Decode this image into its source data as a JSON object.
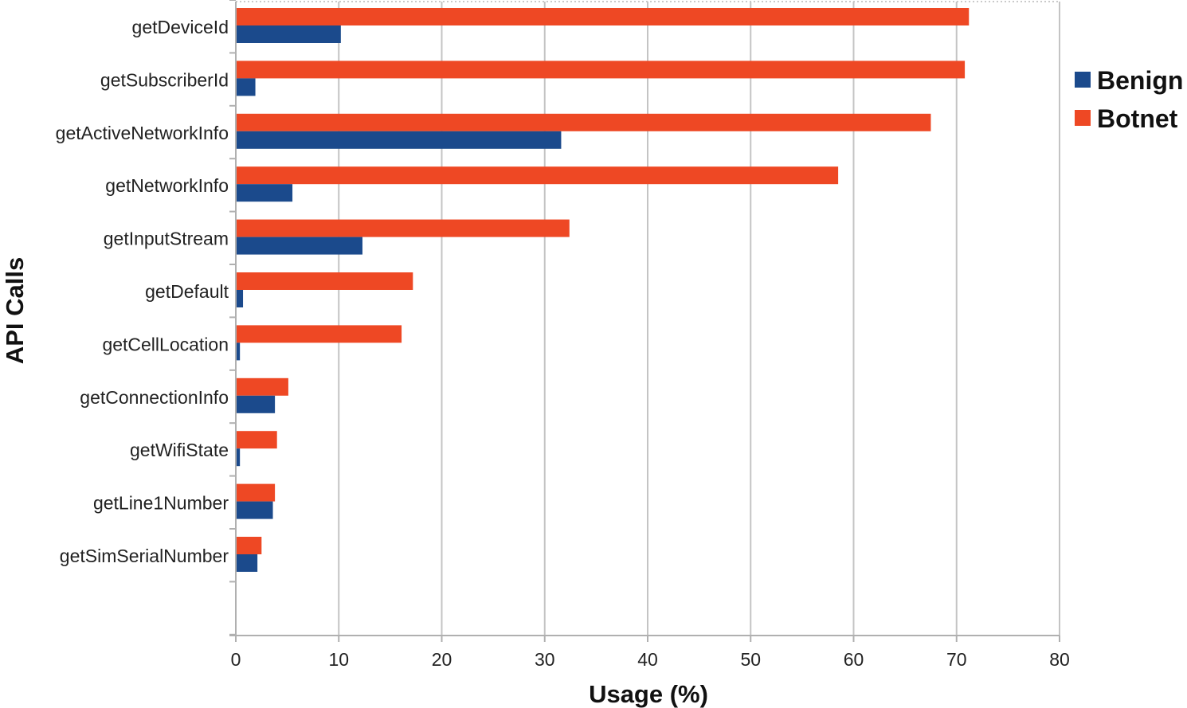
{
  "chart_data": {
    "type": "bar",
    "orientation": "horizontal",
    "title": "",
    "xlabel": "Usage (%)",
    "ylabel": "API Calls",
    "xlim": [
      0,
      80
    ],
    "xticks": [
      0,
      10,
      20,
      30,
      40,
      50,
      60,
      70,
      80
    ],
    "grid": true,
    "legend_position": "right",
    "categories": [
      "getDeviceId",
      "getSubscriberId",
      "getActiveNetworkInfo",
      "getNetworkInfo",
      "getInputStream",
      "getDefault",
      "getCellLocation",
      "getConnectionInfo",
      "getWifiState",
      "getLine1Number",
      "getSimSerialNumber"
    ],
    "series": [
      {
        "name": "Benign",
        "color": "#1b4a8c",
        "values": [
          10.2,
          1.9,
          31.6,
          5.5,
          12.3,
          0.7,
          0.4,
          3.8,
          0.4,
          3.6,
          2.1
        ]
      },
      {
        "name": "Botnet",
        "color": "#ee4824",
        "values": [
          71.2,
          70.8,
          67.5,
          58.5,
          32.4,
          17.2,
          16.1,
          5.1,
          4.0,
          3.8,
          2.5
        ]
      }
    ]
  }
}
